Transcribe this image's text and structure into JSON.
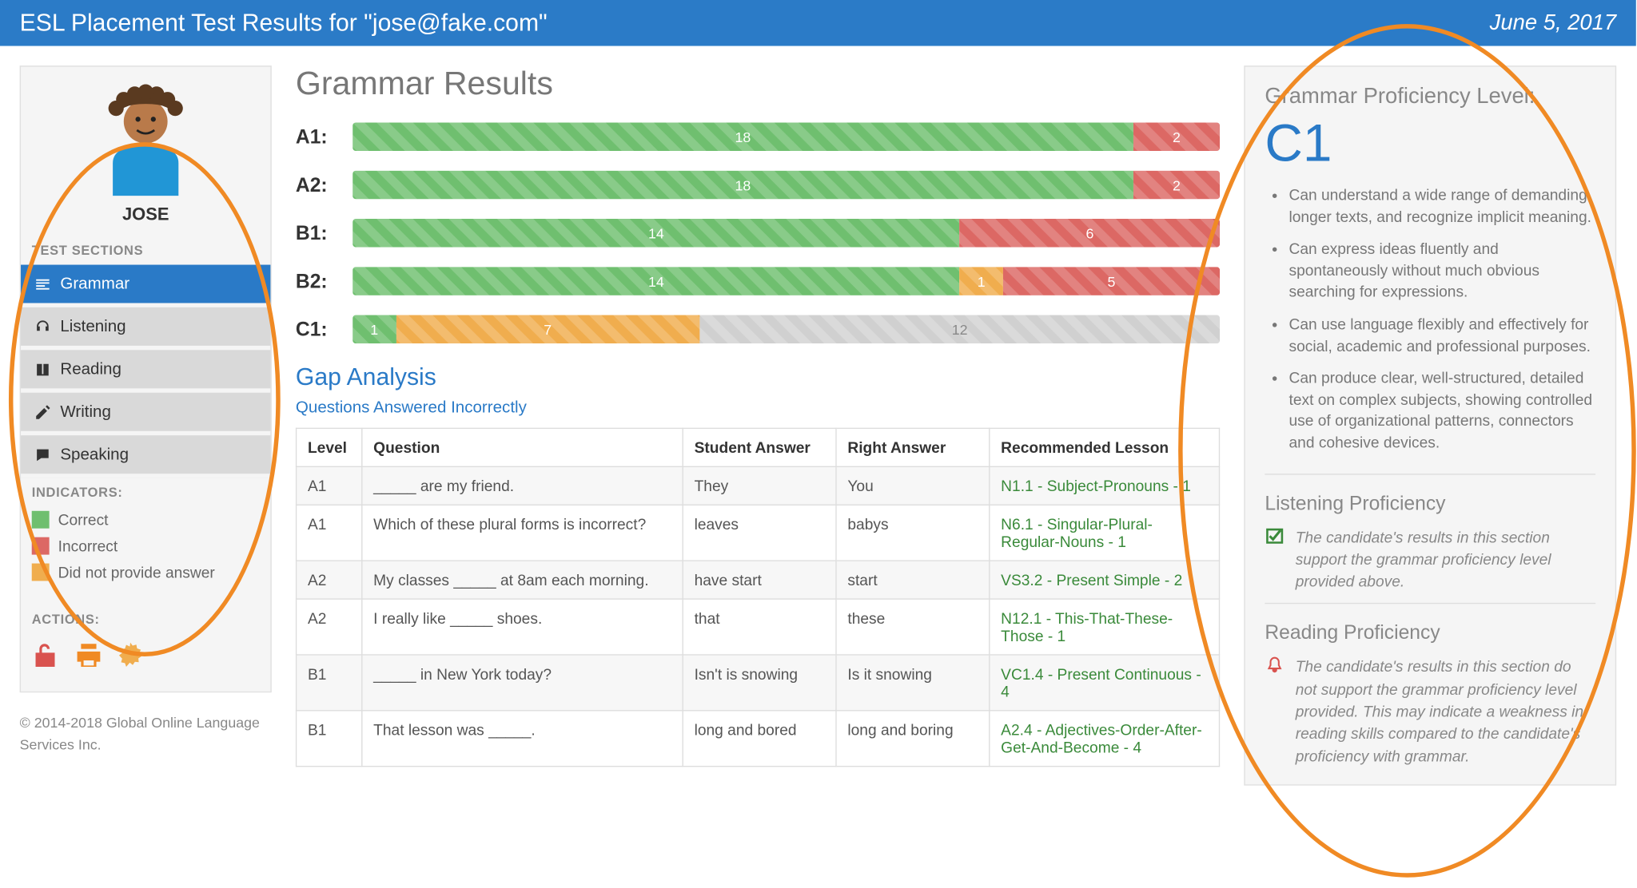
{
  "header": {
    "title": "ESL Placement Test Results for \"jose@fake.com\"",
    "date": "June 5, 2017"
  },
  "sidebar": {
    "username": "JOSE",
    "sections_label": "TEST SECTIONS",
    "items": [
      {
        "label": "Grammar",
        "active": true
      },
      {
        "label": "Listening",
        "active": false
      },
      {
        "label": "Reading",
        "active": false
      },
      {
        "label": "Writing",
        "active": false
      },
      {
        "label": "Speaking",
        "active": false
      }
    ],
    "indicators_label": "INDICATORS:",
    "legend": [
      {
        "label": "Correct",
        "color": "#6fbf6f"
      },
      {
        "label": "Incorrect",
        "color": "#dc6864"
      },
      {
        "label": "Did not provide answer",
        "color": "#f0ad4e"
      }
    ],
    "actions_label": "ACTIONS:"
  },
  "main": {
    "title": "Grammar Results",
    "colors": {
      "correct": "#6fbf6f",
      "incorrect": "#dc6864",
      "no_answer": "#f0ad4e",
      "unattempted": "#d0d0d0"
    },
    "bar_total": 20,
    "bars": [
      {
        "level": "A1:",
        "segments": [
          {
            "type": "correct",
            "value": 18
          },
          {
            "type": "incorrect",
            "value": 2
          }
        ]
      },
      {
        "level": "A2:",
        "segments": [
          {
            "type": "correct",
            "value": 18
          },
          {
            "type": "incorrect",
            "value": 2
          }
        ]
      },
      {
        "level": "B1:",
        "segments": [
          {
            "type": "correct",
            "value": 14
          },
          {
            "type": "incorrect",
            "value": 6
          }
        ]
      },
      {
        "level": "B2:",
        "segments": [
          {
            "type": "correct",
            "value": 14
          },
          {
            "type": "no_answer",
            "value": 1
          },
          {
            "type": "incorrect",
            "value": 5
          }
        ]
      },
      {
        "level": "C1:",
        "segments": [
          {
            "type": "correct",
            "value": 1
          },
          {
            "type": "no_answer",
            "value": 7
          },
          {
            "type": "unattempted",
            "value": 12
          }
        ]
      }
    ],
    "gap": {
      "title": "Gap Analysis",
      "subtitle": "Questions Answered Incorrectly",
      "columns": [
        "Level",
        "Question",
        "Student Answer",
        "Right Answer",
        "Recommended Lesson"
      ],
      "rows": [
        [
          "A1",
          "_____ are my friend.",
          "They",
          "You",
          "N1.1 - Subject-Pronouns - 1"
        ],
        [
          "A1",
          "Which of these plural forms is incorrect?",
          "leaves",
          "babys",
          "N6.1 - Singular-Plural-Regular-Nouns - 1"
        ],
        [
          "A2",
          "My classes _____ at 8am each morning.",
          "have start",
          "start",
          "VS3.2 - Present Simple - 2"
        ],
        [
          "A2",
          "I really like _____ shoes.",
          "that",
          "these",
          "N12.1 - This-That-These-Those - 1"
        ],
        [
          "B1",
          "_____ in New York today?",
          "Isn't is snowing",
          "Is it snowing",
          "VC1.4 - Present Continuous - 4"
        ],
        [
          "B1",
          "That lesson was _____.",
          "long and bored",
          "long and boring",
          "A2.4 - Adjectives-Order-After-Get-And-Become - 4"
        ]
      ]
    }
  },
  "right": {
    "grammar_label": "Grammar Proficiency Level:",
    "grammar_level": "C1",
    "bullets": [
      "Can understand a wide range of demanding, longer texts, and recognize implicit meaning.",
      "Can express ideas fluently and spontaneously without much obvious searching for expressions.",
      "Can use language flexibly and effectively for social, academic and professional purposes.",
      "Can produce clear, well-structured, detailed text on complex subjects, showing controlled use of organizational patterns, connectors and cohesive devices."
    ],
    "listening": {
      "title": "Listening Proficiency",
      "icon_color": "#3a8a3a",
      "text": "The candidate's results in this section support the grammar proficiency level provided above."
    },
    "reading": {
      "title": "Reading Proficiency",
      "icon_color": "#d9534f",
      "text": "The candidate's results in this section do not support the grammar proficiency level provided. This may indicate a weakness in reading skills compared to the candidate's proficiency with grammar."
    }
  },
  "copyright": "© 2014-2018 Global Online Language Services Inc."
}
